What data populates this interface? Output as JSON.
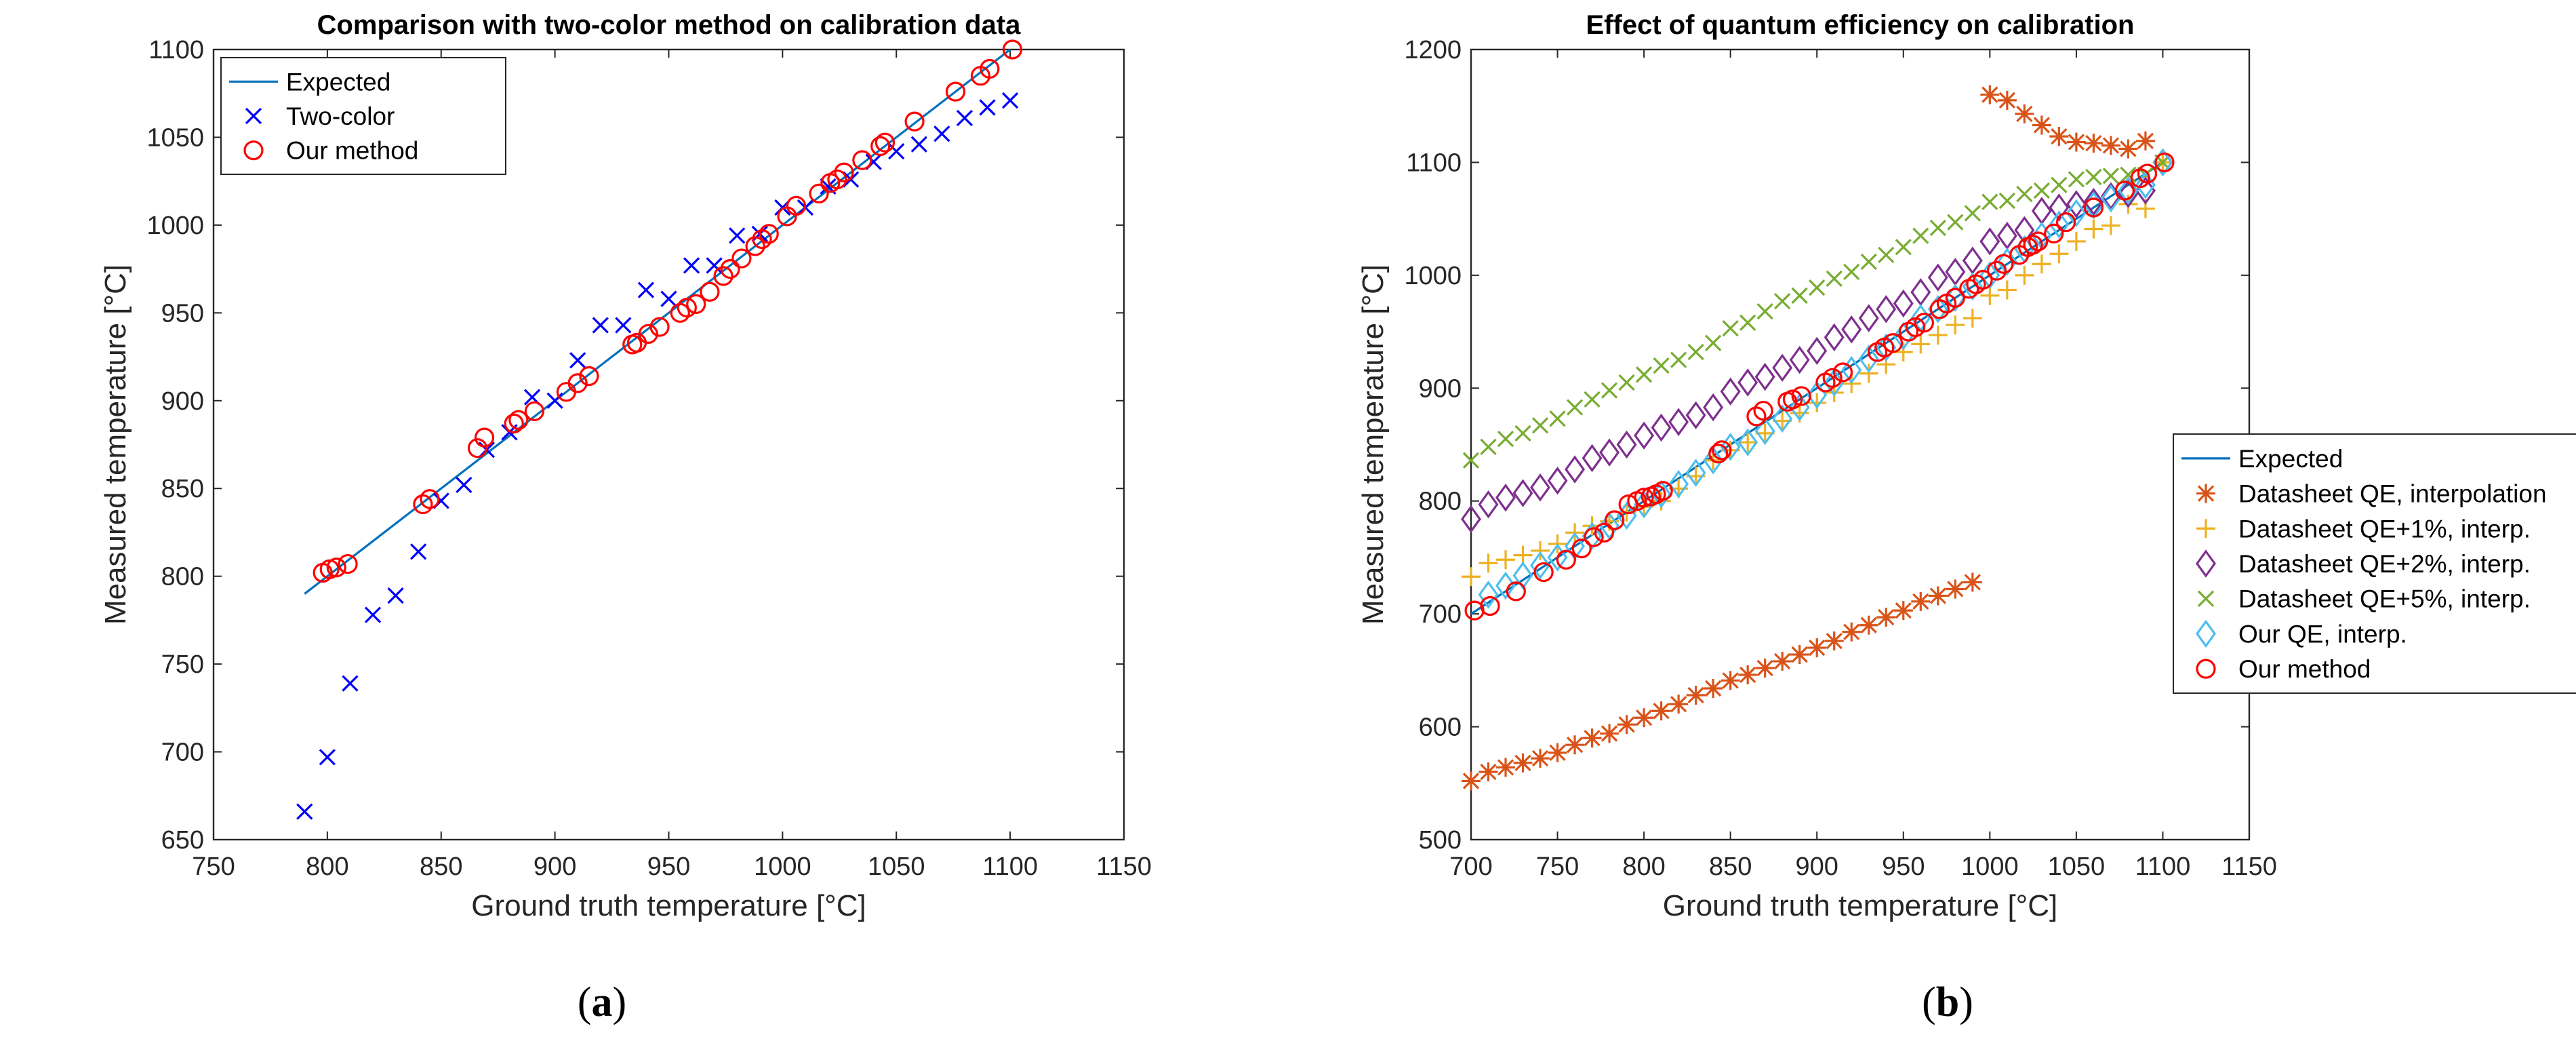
{
  "colors": {
    "expected": "#0072BD",
    "two_color": "#0000FF",
    "our_method": "#FF0000",
    "datasheet_qe": "#D95319",
    "qe_plus1": "#EDB120",
    "qe_plus2": "#7E2F8E",
    "qe_plus5": "#77AC30",
    "our_qe": "#4DBEEE",
    "axis": "#262626",
    "legend_border": "#262626"
  },
  "panels": [
    {
      "caption_open": "(",
      "caption_letter": "a",
      "caption_close": ")"
    },
    {
      "caption_open": "(",
      "caption_letter": "b",
      "caption_close": ")"
    }
  ],
  "chart_data": [
    {
      "type": "scatter",
      "title": "Comparison with two-color method on calibration data",
      "xlabel": "Ground truth temperature [°C]",
      "ylabel": "Measured temperature [°C]",
      "xlim": [
        750,
        1150
      ],
      "ylim": [
        650,
        1100
      ],
      "xticks": [
        750,
        800,
        850,
        900,
        950,
        1000,
        1050,
        1100,
        1150
      ],
      "yticks": [
        650,
        700,
        750,
        800,
        850,
        900,
        950,
        1000,
        1050,
        1100
      ],
      "legend_position": "top-left",
      "series": [
        {
          "name": "Expected",
          "kind": "line",
          "marker": "none",
          "color": "#0072BD",
          "x": [
            790,
            1100
          ],
          "y": [
            790,
            1100
          ]
        },
        {
          "name": "Two-color",
          "kind": "markers",
          "marker": "x",
          "color": "#0000FF",
          "x": [
            790,
            800,
            810,
            820,
            830,
            840,
            850,
            860,
            870,
            880,
            890,
            900,
            910,
            920,
            930,
            940,
            950,
            960,
            970,
            980,
            990,
            1000,
            1010,
            1020,
            1030,
            1040,
            1050,
            1060,
            1070,
            1080,
            1090,
            1100
          ],
          "y": [
            666,
            697,
            739,
            778,
            789,
            814,
            843,
            852,
            872,
            882,
            902,
            900,
            923,
            943,
            943,
            963,
            958,
            977,
            977,
            994,
            995,
            1010,
            1010,
            1022,
            1026,
            1036,
            1042,
            1046,
            1052,
            1061,
            1067,
            1071
          ]
        },
        {
          "name": "Our method",
          "kind": "markers",
          "marker": "o",
          "color": "#FF0000",
          "x": [
            798,
            801,
            804,
            809,
            842,
            845,
            866,
            869,
            882,
            884,
            891,
            905,
            910,
            915,
            934,
            936,
            941,
            946,
            955,
            958,
            962,
            968,
            974,
            977,
            982,
            988,
            991,
            994,
            1002,
            1006,
            1016,
            1021,
            1024,
            1027,
            1035,
            1043,
            1045,
            1058,
            1076,
            1087,
            1091,
            1101
          ],
          "y": [
            802,
            804,
            805,
            807,
            841,
            844,
            873,
            879,
            887,
            889,
            894,
            905,
            910,
            914,
            932,
            933,
            938,
            942,
            950,
            953,
            955,
            962,
            971,
            975,
            981,
            988,
            992,
            995,
            1005,
            1011,
            1018,
            1024,
            1026,
            1030,
            1037,
            1045,
            1047,
            1059,
            1076,
            1085,
            1089,
            1100
          ]
        }
      ]
    },
    {
      "type": "scatter",
      "title": "Effect of quantum efficiency on calibration",
      "xlabel": "Ground truth temperature [°C]",
      "ylabel": "Measured temperature [°C]",
      "xlim": [
        700,
        1150
      ],
      "ylim": [
        500,
        1200
      ],
      "xticks": [
        700,
        750,
        800,
        850,
        900,
        950,
        1000,
        1050,
        1100,
        1150
      ],
      "yticks": [
        500,
        600,
        700,
        800,
        900,
        1000,
        1100,
        1200
      ],
      "legend_position": "right",
      "series": [
        {
          "name": "Expected",
          "kind": "line",
          "marker": "none",
          "color": "#0072BD",
          "x": [
            700,
            1100
          ],
          "y": [
            700,
            1100
          ]
        },
        {
          "name": "Datasheet QE, interpolation",
          "kind": "markers",
          "marker": "*",
          "color": "#D95319",
          "x": [
            700,
            710,
            720,
            730,
            740,
            750,
            760,
            770,
            780,
            790,
            800,
            810,
            820,
            830,
            840,
            850,
            860,
            870,
            880,
            890,
            900,
            910,
            920,
            930,
            940,
            950,
            960,
            970,
            980,
            990,
            1000,
            1010,
            1020,
            1030,
            1040,
            1050,
            1060,
            1070,
            1080,
            1090,
            1100
          ],
          "y": [
            552,
            560,
            564,
            568,
            572,
            577,
            584,
            590,
            594,
            602,
            608,
            614,
            620,
            628,
            634,
            641,
            646,
            652,
            658,
            664,
            670,
            676,
            684,
            690,
            697,
            703,
            711,
            716,
            722,
            728,
            1160,
            1155,
            1143,
            1133,
            1123,
            1118,
            1117,
            1115,
            1112,
            1119,
            1100
          ]
        },
        {
          "name": "Datasheet QE+1%, interp.",
          "kind": "markers",
          "marker": "+",
          "color": "#EDB120",
          "x": [
            700,
            710,
            720,
            730,
            740,
            750,
            760,
            770,
            780,
            790,
            800,
            810,
            820,
            830,
            840,
            850,
            860,
            870,
            880,
            890,
            900,
            910,
            920,
            930,
            940,
            950,
            960,
            970,
            980,
            990,
            1000,
            1010,
            1020,
            1030,
            1040,
            1050,
            1060,
            1070,
            1080,
            1090,
            1100
          ],
          "y": [
            733,
            745,
            748,
            752,
            756,
            762,
            772,
            778,
            782,
            790,
            795,
            800,
            811,
            822,
            836,
            845,
            852,
            860,
            871,
            878,
            887,
            896,
            904,
            913,
            921,
            932,
            939,
            947,
            956,
            962,
            982,
            987,
            1000,
            1010,
            1019,
            1030,
            1041,
            1044,
            1063,
            1059,
            1100
          ]
        },
        {
          "name": "Datasheet QE+2%, interp.",
          "kind": "markers",
          "marker": "d",
          "color": "#7E2F8E",
          "x": [
            700,
            710,
            720,
            730,
            740,
            750,
            760,
            770,
            780,
            790,
            800,
            810,
            820,
            830,
            840,
            850,
            860,
            870,
            880,
            890,
            900,
            910,
            920,
            930,
            940,
            950,
            960,
            970,
            980,
            990,
            1000,
            1010,
            1020,
            1030,
            1040,
            1050,
            1060,
            1070,
            1080,
            1090,
            1100
          ],
          "y": [
            784,
            797,
            803,
            807,
            812,
            818,
            828,
            838,
            843,
            850,
            858,
            865,
            870,
            876,
            883,
            897,
            905,
            910,
            918,
            925,
            933,
            945,
            952,
            962,
            970,
            975,
            985,
            998,
            1003,
            1013,
            1030,
            1035,
            1040,
            1057,
            1060,
            1063,
            1065,
            1070,
            1072,
            1075,
            1100
          ]
        },
        {
          "name": "Datasheet QE+5%, interp.",
          "kind": "markers",
          "marker": "x",
          "color": "#77AC30",
          "x": [
            700,
            710,
            720,
            730,
            740,
            750,
            760,
            770,
            780,
            790,
            800,
            810,
            820,
            830,
            840,
            850,
            860,
            870,
            880,
            890,
            900,
            910,
            920,
            930,
            940,
            950,
            960,
            970,
            980,
            990,
            1000,
            1010,
            1020,
            1030,
            1040,
            1050,
            1060,
            1070,
            1080,
            1090,
            1100
          ],
          "y": [
            836,
            848,
            855,
            860,
            867,
            873,
            883,
            890,
            898,
            905,
            912,
            920,
            925,
            932,
            940,
            953,
            958,
            968,
            977,
            982,
            989,
            997,
            1003,
            1012,
            1018,
            1025,
            1035,
            1042,
            1047,
            1055,
            1065,
            1066,
            1072,
            1075,
            1080,
            1085,
            1087,
            1088,
            1089,
            1089,
            1100
          ]
        },
        {
          "name": "Our QE, interp.",
          "kind": "markers",
          "marker": "d",
          "color": "#4DBEEE",
          "x": [
            710,
            720,
            730,
            740,
            750,
            760,
            770,
            780,
            790,
            800,
            810,
            820,
            830,
            840,
            850,
            860,
            870,
            880,
            890,
            900,
            910,
            920,
            930,
            940,
            950,
            960,
            970,
            980,
            990,
            1000,
            1010,
            1020,
            1030,
            1040,
            1050,
            1060,
            1070,
            1080,
            1090,
            1100
          ],
          "y": [
            717,
            725,
            734,
            743,
            750,
            760,
            769,
            778,
            787,
            797,
            806,
            815,
            825,
            836,
            848,
            852,
            862,
            873,
            883,
            894,
            905,
            916,
            926,
            936,
            946,
            962,
            970,
            980,
            990,
            1000,
            1012,
            1023,
            1035,
            1045,
            1055,
            1062,
            1068,
            1075,
            1080,
            1100
          ]
        },
        {
          "name": "Our method",
          "kind": "markers",
          "marker": "o",
          "color": "#FF0000",
          "x": [
            702,
            711,
            726,
            742,
            755,
            764,
            771,
            777,
            783,
            791,
            796,
            800,
            804,
            807,
            811,
            843,
            845,
            865,
            869,
            883,
            886,
            891,
            905,
            909,
            915,
            935,
            939,
            944,
            953,
            957,
            962,
            971,
            975,
            980,
            988,
            992,
            996,
            1004,
            1008,
            1017,
            1022,
            1025,
            1028,
            1037,
            1044,
            1060,
            1078,
            1087,
            1091,
            1101
          ],
          "y": [
            703,
            707,
            720,
            737,
            748,
            758,
            768,
            772,
            783,
            797,
            800,
            803,
            804,
            806,
            809,
            842,
            845,
            875,
            880,
            888,
            890,
            893,
            905,
            909,
            914,
            932,
            936,
            940,
            950,
            954,
            958,
            970,
            975,
            980,
            988,
            992,
            996,
            1004,
            1010,
            1018,
            1025,
            1027,
            1030,
            1037,
            1047,
            1060,
            1075,
            1086,
            1090,
            1100
          ]
        }
      ]
    }
  ]
}
